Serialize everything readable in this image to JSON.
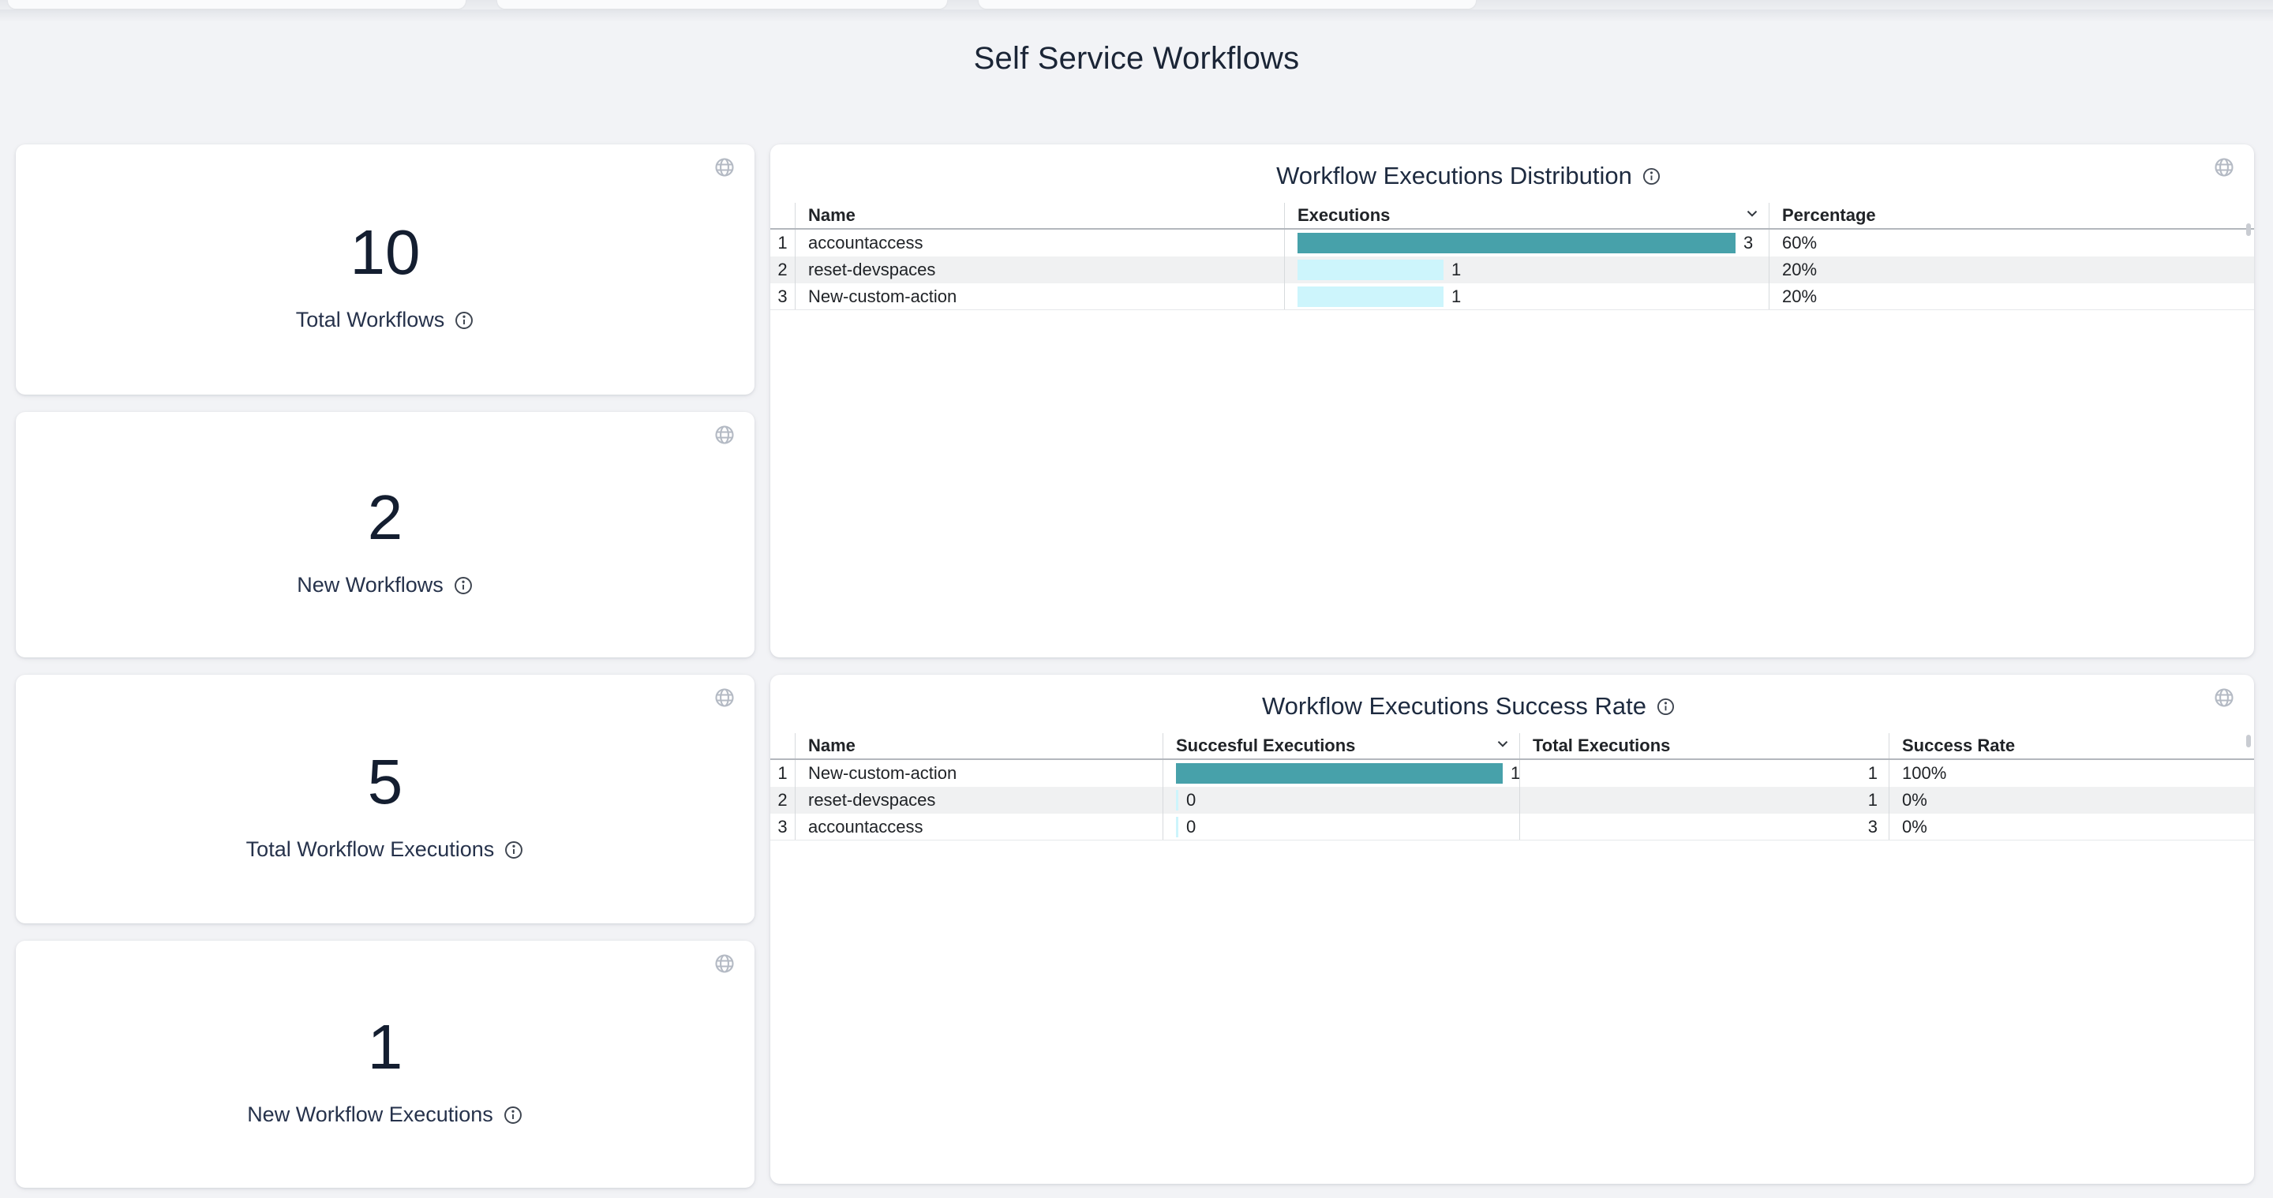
{
  "page": {
    "title": "Self Service Workflows"
  },
  "colors": {
    "accent_teal": "#47A1AA",
    "accent_cyan": "#CDF5FC",
    "page_background": "#f2f3f6",
    "title_navy": "#1b2536"
  },
  "icons": {
    "globe": "globe-icon",
    "info": "info-icon",
    "sort_desc": "chevron-down-icon"
  },
  "stat_cards": [
    {
      "value": "10",
      "label": "Total Workflows"
    },
    {
      "value": "2",
      "label": "New Workflows"
    },
    {
      "value": "5",
      "label": "Total Workflow Executions"
    },
    {
      "value": "1",
      "label": "New Workflow Executions"
    }
  ],
  "chart_data": [
    {
      "type": "table",
      "title": "Workflow Executions Distribution",
      "columns": [
        "Name",
        "Executions",
        "Percentage"
      ],
      "sorted_column": "Executions",
      "sort_direction": "desc",
      "bar_max": 3,
      "rows": [
        {
          "num": "1",
          "name": "accountaccess",
          "executions": 3,
          "executions_label": "3",
          "percentage": "60%",
          "bar_color": "#47A1AA"
        },
        {
          "num": "2",
          "name": "reset-devspaces",
          "executions": 1,
          "executions_label": "1",
          "percentage": "20%",
          "bar_color": "#CDF5FC"
        },
        {
          "num": "3",
          "name": "New-custom-action",
          "executions": 1,
          "executions_label": "1",
          "percentage": "20%",
          "bar_color": "#CDF5FC"
        }
      ]
    },
    {
      "type": "table",
      "title": "Workflow Executions Success Rate",
      "columns": [
        "Name",
        "Succesful Executions",
        "Total Executions",
        "Success Rate"
      ],
      "sorted_column": "Succesful Executions",
      "sort_direction": "desc",
      "bar_max": 1,
      "rows": [
        {
          "num": "1",
          "name": "New-custom-action",
          "successful": 1,
          "successful_label": "1",
          "total_executions": "1",
          "success_rate": "100%",
          "bar_color": "#47A1AA"
        },
        {
          "num": "2",
          "name": "reset-devspaces",
          "successful": 0,
          "successful_label": "0",
          "total_executions": "1",
          "success_rate": "0%",
          "bar_color": "#CDF5FC"
        },
        {
          "num": "3",
          "name": "accountaccess",
          "successful": 0,
          "successful_label": "0",
          "total_executions": "3",
          "success_rate": "0%",
          "bar_color": "#CDF5FC"
        }
      ]
    }
  ]
}
